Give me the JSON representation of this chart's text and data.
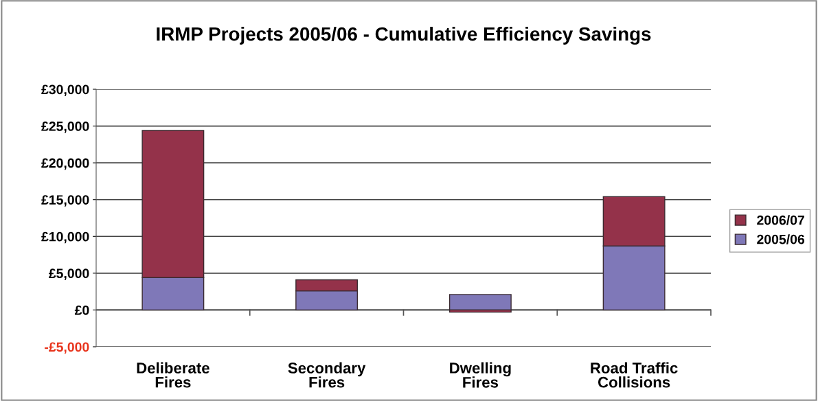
{
  "chart_data": {
    "type": "bar",
    "title": "IRMP Projects 2005/06 - Cumulative Efficiency Savings",
    "categories": [
      "Deliberate Fires",
      "Secondary Fires",
      "Dwelling Fires",
      "Road Traffic Collisions"
    ],
    "stacked": true,
    "series": [
      {
        "name": "2005/06",
        "color": "#7f78b8",
        "values": [
          4400,
          2600,
          2100,
          8700
        ]
      },
      {
        "name": "2006/07",
        "color": "#94324a",
        "values": [
          20000,
          1500,
          -300,
          6700
        ]
      }
    ],
    "ylim": [
      -5000,
      30000
    ],
    "yticks": [
      {
        "value": -5000,
        "label": "-£5,000"
      },
      {
        "value": 0,
        "label": "£0"
      },
      {
        "value": 5000,
        "label": "£5,000"
      },
      {
        "value": 10000,
        "label": "£10,000"
      },
      {
        "value": 15000,
        "label": "£15,000"
      },
      {
        "value": 20000,
        "label": "£20,000"
      },
      {
        "value": 25000,
        "label": "£25,000"
      },
      {
        "value": 30000,
        "label": "£30,000"
      }
    ],
    "grid": "y",
    "legend": "right"
  }
}
